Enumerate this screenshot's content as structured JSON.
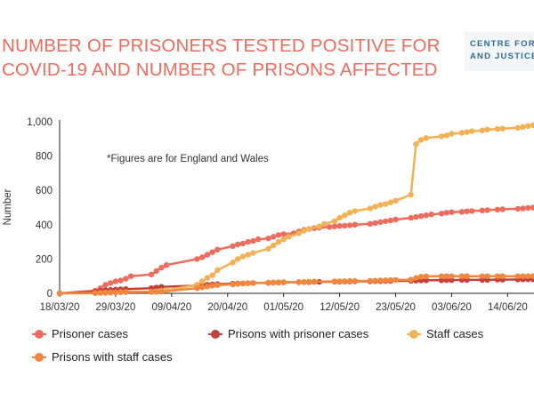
{
  "header": {
    "title_line1": "NUMBER OF PRISONERS TESTED POSITIVE FOR",
    "title_line2": "COVID-19 AND NUMBER OF PRISONS AFFECTED",
    "logo_line1": "CENTRE FOR CRIME",
    "logo_line2": "AND JUSTICE STUDIES"
  },
  "chart_data": {
    "type": "line",
    "title": "NUMBER OF PRISONERS TESTED POSITIVE FOR COVID-19 AND NUMBER OF PRISONS AFFECTED",
    "ylabel": "Number",
    "xlabel": "",
    "ylim": [
      0,
      1000
    ],
    "yticks": [
      "0",
      "200",
      "400",
      "600",
      "800",
      "1,000"
    ],
    "ytick_values": [
      0,
      200,
      400,
      600,
      800,
      1000
    ],
    "xticks": [
      "18/03/20",
      "29/03/20",
      "09/04/20",
      "20/04/20",
      "01/05/20",
      "12/05/20",
      "23/05/20",
      "03/06/20",
      "14/06/20"
    ],
    "x_start": "18/03/20",
    "annotation": "*Figures are for England and Wales",
    "grid": false,
    "legend_position": "bottom",
    "series": [
      {
        "name": "Prisoner cases",
        "color": "#ee6c5d",
        "x": [
          "18/03/20",
          "25/03/20",
          "26/03/20",
          "27/03/20",
          "28/03/20",
          "29/03/20",
          "30/03/20",
          "31/03/20",
          "01/04/20",
          "05/04/20",
          "06/04/20",
          "07/04/20",
          "08/04/20",
          "14/04/20",
          "15/04/20",
          "16/04/20",
          "17/04/20",
          "18/04/20",
          "21/04/20",
          "22/04/20",
          "23/04/20",
          "24/04/20",
          "25/04/20",
          "26/04/20",
          "28/04/20",
          "29/04/20",
          "30/04/20",
          "01/05/20",
          "03/05/20",
          "04/05/20",
          "05/05/20",
          "06/05/20",
          "07/05/20",
          "08/05/20",
          "10/05/20",
          "11/05/20",
          "12/05/20",
          "13/05/20",
          "14/05/20",
          "15/05/20",
          "18/05/20",
          "19/05/20",
          "20/05/20",
          "21/05/20",
          "22/05/20",
          "23/05/20",
          "26/05/20",
          "27/05/20",
          "28/05/20",
          "29/05/20",
          "30/05/20",
          "01/06/20",
          "02/06/20",
          "03/06/20",
          "05/06/20",
          "06/06/20",
          "07/06/20",
          "09/06/20",
          "10/06/20",
          "12/06/20",
          "13/06/20",
          "16/06/20",
          "17/06/20",
          "18/06/20",
          "19/06/20"
        ],
        "values": [
          0,
          16,
          30,
          50,
          60,
          70,
          75,
          85,
          100,
          110,
          130,
          150,
          165,
          200,
          210,
          225,
          240,
          255,
          275,
          285,
          290,
          300,
          305,
          315,
          320,
          330,
          340,
          345,
          350,
          360,
          370,
          375,
          380,
          383,
          387,
          390,
          393,
          395,
          397,
          400,
          405,
          410,
          415,
          420,
          425,
          430,
          440,
          445,
          450,
          455,
          460,
          465,
          470,
          473,
          475,
          478,
          480,
          483,
          485,
          488,
          490,
          493,
          495,
          498,
          500
        ]
      },
      {
        "name": "Prisons with prisoner cases",
        "color": "#c5403a",
        "x": [
          "18/03/20",
          "25/03/20",
          "26/03/20",
          "27/03/20",
          "28/03/20",
          "29/03/20",
          "30/03/20",
          "31/03/20",
          "05/04/20",
          "06/04/20",
          "07/04/20",
          "14/04/20",
          "15/04/20",
          "16/04/20",
          "17/04/20",
          "18/04/20",
          "21/04/20",
          "22/04/20",
          "23/04/20",
          "24/04/20",
          "25/04/20",
          "28/04/20",
          "29/04/20",
          "30/04/20",
          "01/05/20",
          "04/05/20",
          "05/05/20",
          "06/05/20",
          "07/05/20",
          "08/05/20",
          "11/05/20",
          "12/05/20",
          "13/05/20",
          "14/05/20",
          "15/05/20",
          "18/05/20",
          "19/05/20",
          "20/05/20",
          "21/05/20",
          "22/05/20",
          "26/05/20",
          "27/05/20",
          "28/05/20",
          "29/05/20",
          "01/06/20",
          "02/06/20",
          "03/06/20",
          "05/06/20",
          "06/06/20",
          "09/06/20",
          "10/06/20",
          "12/06/20",
          "13/06/20",
          "16/06/20",
          "17/06/20",
          "18/06/20",
          "19/06/20"
        ],
        "values": [
          0,
          10,
          14,
          18,
          20,
          22,
          24,
          25,
          30,
          34,
          38,
          45,
          48,
          50,
          52,
          54,
          56,
          57,
          58,
          59,
          60,
          61,
          62,
          63,
          64,
          65,
          66,
          66,
          67,
          67,
          68,
          68,
          69,
          69,
          70,
          70,
          71,
          71,
          72,
          72,
          73,
          74,
          75,
          76,
          76,
          77,
          77,
          78,
          78,
          79,
          79,
          80,
          80,
          81,
          81,
          82,
          82
        ]
      },
      {
        "name": "Staff cases",
        "color": "#f2b155",
        "x": [
          "18/03/20",
          "25/03/20",
          "26/03/20",
          "27/03/20",
          "28/03/20",
          "29/03/20",
          "30/03/20",
          "31/03/20",
          "05/04/20",
          "06/04/20",
          "07/04/20",
          "08/04/20",
          "14/04/20",
          "15/04/20",
          "16/04/20",
          "17/04/20",
          "18/04/20",
          "21/04/20",
          "22/04/20",
          "23/04/20",
          "24/04/20",
          "25/04/20",
          "28/04/20",
          "29/04/20",
          "30/04/20",
          "01/05/20",
          "02/05/20",
          "04/05/20",
          "05/05/20",
          "06/05/20",
          "08/05/20",
          "09/05/20",
          "11/05/20",
          "12/05/20",
          "13/05/20",
          "14/05/20",
          "15/05/20",
          "18/05/20",
          "19/05/20",
          "20/05/20",
          "21/05/20",
          "22/05/20",
          "23/05/20",
          "26/05/20",
          "27/05/20",
          "28/05/20",
          "29/05/20",
          "01/06/20",
          "02/06/20",
          "03/06/20",
          "05/06/20",
          "06/06/20",
          "07/06/20",
          "09/06/20",
          "10/06/20",
          "12/06/20",
          "13/06/20",
          "16/06/20",
          "17/06/20",
          "18/06/20",
          "19/06/20"
        ],
        "values": [
          0,
          2,
          3,
          4,
          5,
          6,
          7,
          8,
          10,
          12,
          15,
          18,
          50,
          70,
          90,
          105,
          135,
          180,
          200,
          215,
          225,
          235,
          260,
          280,
          300,
          315,
          330,
          350,
          365,
          375,
          390,
          405,
          420,
          440,
          455,
          470,
          480,
          495,
          505,
          515,
          520,
          530,
          540,
          575,
          870,
          895,
          905,
          915,
          920,
          930,
          935,
          940,
          945,
          950,
          955,
          958,
          960,
          965,
          970,
          975,
          980
        ]
      },
      {
        "name": "Prisons with staff cases",
        "color": "#f0873d",
        "x": [
          "18/03/20",
          "25/03/20",
          "26/03/20",
          "27/03/20",
          "28/03/20",
          "29/03/20",
          "30/03/20",
          "31/03/20",
          "05/04/20",
          "06/04/20",
          "07/04/20",
          "14/04/20",
          "15/04/20",
          "16/04/20",
          "17/04/20",
          "18/04/20",
          "21/04/20",
          "22/04/20",
          "23/04/20",
          "24/04/20",
          "25/04/20",
          "28/04/20",
          "29/04/20",
          "30/04/20",
          "01/05/20",
          "04/05/20",
          "05/05/20",
          "06/05/20",
          "07/05/20",
          "11/05/20",
          "12/05/20",
          "13/05/20",
          "14/05/20",
          "15/05/20",
          "18/05/20",
          "19/05/20",
          "20/05/20",
          "21/05/20",
          "22/05/20",
          "23/05/20",
          "26/05/20",
          "27/05/20",
          "28/05/20",
          "29/05/20",
          "01/06/20",
          "02/06/20",
          "03/06/20",
          "05/06/20",
          "06/06/20",
          "09/06/20",
          "10/06/20",
          "12/06/20",
          "13/06/20",
          "16/06/20",
          "17/06/20",
          "18/06/20",
          "19/06/20"
        ],
        "values": [
          0,
          1,
          2,
          3,
          4,
          5,
          6,
          7,
          8,
          9,
          10,
          30,
          35,
          40,
          45,
          48,
          52,
          55,
          57,
          59,
          60,
          62,
          63,
          64,
          65,
          66,
          67,
          68,
          69,
          70,
          70,
          71,
          72,
          72,
          73,
          74,
          75,
          76,
          77,
          78,
          80,
          90,
          97,
          99,
          100,
          100,
          100,
          100,
          100,
          100,
          100,
          100,
          100,
          100,
          100,
          100,
          100
        ]
      }
    ]
  }
}
